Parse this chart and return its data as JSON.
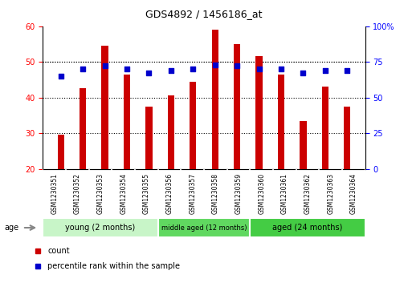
{
  "title": "GDS4892 / 1456186_at",
  "samples": [
    "GSM1230351",
    "GSM1230352",
    "GSM1230353",
    "GSM1230354",
    "GSM1230355",
    "GSM1230356",
    "GSM1230357",
    "GSM1230358",
    "GSM1230359",
    "GSM1230360",
    "GSM1230361",
    "GSM1230362",
    "GSM1230363",
    "GSM1230364"
  ],
  "counts": [
    29.5,
    42.5,
    54.5,
    46.5,
    37.5,
    40.5,
    44.5,
    59.0,
    55.0,
    51.5,
    46.5,
    33.5,
    43.0,
    37.5
  ],
  "percentile_ranks": [
    65,
    70,
    72,
    70,
    67,
    69,
    70,
    73,
    72,
    70,
    70,
    67,
    69,
    69
  ],
  "groups": [
    {
      "label": "young (2 months)",
      "start": 0,
      "end": 5
    },
    {
      "label": "middle aged (12 months)",
      "start": 5,
      "end": 9
    },
    {
      "label": "aged (24 months)",
      "start": 9,
      "end": 14
    }
  ],
  "group_colors": [
    "#c8f5c8",
    "#60d860",
    "#44cc44"
  ],
  "ylim_left": [
    20,
    60
  ],
  "ylim_right": [
    0,
    100
  ],
  "yticks_left": [
    20,
    30,
    40,
    50,
    60
  ],
  "yticks_right": [
    0,
    25,
    50,
    75,
    100
  ],
  "ytick_right_labels": [
    "0",
    "25",
    "50",
    "75",
    "100%"
  ],
  "bar_color": "#CC0000",
  "dot_color": "#0000CC",
  "bar_width": 0.3,
  "grid_yticks": [
    30,
    40,
    50
  ],
  "legend_items": [
    {
      "label": "count",
      "color": "#CC0000"
    },
    {
      "label": "percentile rank within the sample",
      "color": "#0000CC"
    }
  ],
  "age_label": "age"
}
